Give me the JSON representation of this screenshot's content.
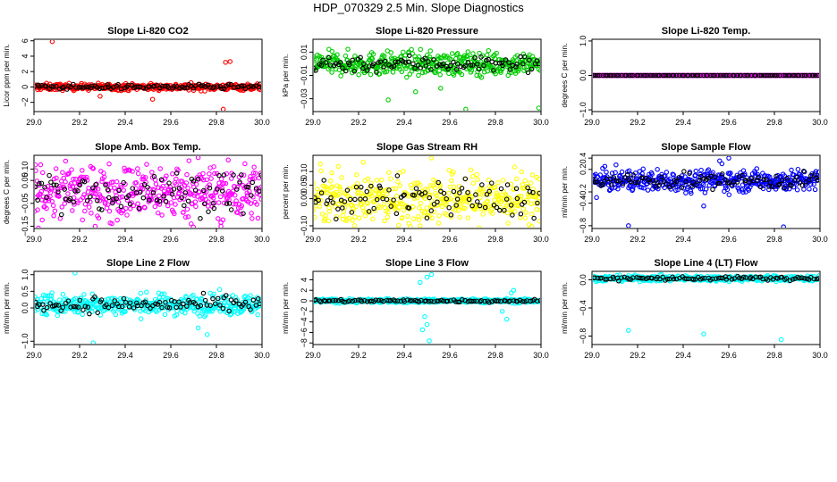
{
  "title": "HDP_070329  2.5 Min. Slope Diagnostics",
  "x_ticks": [
    "29.0",
    "29.2",
    "29.4",
    "29.6",
    "29.8",
    "30.0"
  ],
  "chart_data": [
    {
      "type": "scatter",
      "title": "Slope Li-820 CO2",
      "xlabel": "",
      "ylabel": "Licor ppm per min.",
      "xlim": [
        29.0,
        30.0
      ],
      "ylim": [
        -3.2,
        6.2
      ],
      "yticks": [
        -2,
        0,
        2,
        4,
        6
      ],
      "ytick_labels": [
        "−2",
        "0",
        "2",
        "4",
        "6"
      ],
      "color": "#ff0000",
      "center": 0.0,
      "spread": 0.38,
      "outliers": [
        [
          29.08,
          5.9
        ],
        [
          29.84,
          3.2
        ],
        [
          29.86,
          3.3
        ],
        [
          29.83,
          -2.9
        ],
        [
          29.52,
          -1.6
        ],
        [
          29.29,
          -1.2
        ]
      ]
    },
    {
      "type": "scatter",
      "title": "Slope Li-820 Pressure",
      "xlabel": "",
      "ylabel": "kPa per min.",
      "xlim": [
        29.0,
        30.0
      ],
      "ylim": [
        -0.041,
        0.021
      ],
      "yticks": [
        -0.03,
        -0.01,
        0.01
      ],
      "ytick_labels": [
        "−0.03",
        "−0.01",
        "0.01"
      ],
      "color": "#00cc00",
      "center": 0.0,
      "spread": 0.009,
      "outliers": [
        [
          29.33,
          -0.031
        ],
        [
          29.99,
          -0.038
        ],
        [
          29.67,
          -0.039
        ],
        [
          29.56,
          -0.021
        ],
        [
          29.45,
          -0.024
        ]
      ]
    },
    {
      "type": "scatter",
      "title": "Slope Li-820 Temp.",
      "xlabel": "",
      "ylabel": "degrees C per min.",
      "xlim": [
        29.0,
        30.0
      ],
      "ylim": [
        -1.05,
        1.05
      ],
      "yticks": [
        -1.0,
        0.0,
        1.0
      ],
      "ytick_labels": [
        "−1.0",
        "0.0",
        "1.0"
      ],
      "color": "#ff00ff",
      "center": 0.0,
      "spread": 0.0,
      "outliers": []
    },
    {
      "type": "scatter",
      "title": "Slope Amb. Box Temp.",
      "xlabel": "",
      "ylabel": "degrees C per min.",
      "xlim": [
        29.0,
        30.0
      ],
      "ylim": [
        -0.16,
        0.16
      ],
      "yticks": [
        -0.15,
        -0.05,
        0.05,
        0.1
      ],
      "ytick_labels": [
        "−0.15",
        "−0.05",
        "0.05",
        "0.10"
      ],
      "color": "#ff00ff",
      "center": 0.0,
      "spread": 0.11,
      "outliers": [
        [
          29.72,
          0.15
        ],
        [
          29.82,
          -0.15
        ]
      ]
    },
    {
      "type": "scatter",
      "title": "Slope Gas Stream RH",
      "xlabel": "",
      "ylabel": "percent per min.",
      "xlim": [
        29.0,
        30.0
      ],
      "ylim": [
        -0.11,
        0.16
      ],
      "yticks": [
        -0.1,
        0.0,
        0.05,
        0.1
      ],
      "ytick_labels": [
        "−0.10",
        "0.00",
        "0.05",
        "0.10"
      ],
      "color": "#ffff00",
      "center": 0.0,
      "spread": 0.085,
      "outliers": [
        [
          29.52,
          0.15
        ],
        [
          29.47,
          -0.1
        ]
      ]
    },
    {
      "type": "scatter",
      "title": "Slope Sample Flow",
      "xlabel": "",
      "ylabel": "ml/min per min.",
      "xlim": [
        29.0,
        30.0
      ],
      "ylim": [
        -0.85,
        0.45
      ],
      "yticks": [
        -0.8,
        -0.4,
        -0.2,
        0.2,
        0.4
      ],
      "ytick_labels": [
        "−0.8",
        "−0.4",
        "−0.2",
        "0.2",
        "0.4"
      ],
      "color": "#0000ff",
      "center": 0.0,
      "spread": 0.17,
      "outliers": [
        [
          29.16,
          -0.8
        ],
        [
          29.56,
          0.35
        ],
        [
          29.6,
          0.4
        ],
        [
          29.57,
          0.3
        ],
        [
          29.49,
          -0.45
        ],
        [
          29.84,
          -0.82
        ],
        [
          29.02,
          -0.3
        ]
      ]
    },
    {
      "type": "scatter",
      "title": "Slope Line 2 Flow",
      "xlabel": "",
      "ylabel": "ml/min per min.",
      "xlim": [
        29.0,
        30.0
      ],
      "ylim": [
        -1.1,
        1.1
      ],
      "yticks": [
        -1.0,
        0.0,
        0.5,
        1.0
      ],
      "ytick_labels": [
        "−1.0",
        "0.0",
        "0.5",
        "1.0"
      ],
      "color": "#00ffff",
      "center": 0.1,
      "spread": 0.28,
      "outliers": [
        [
          29.26,
          -1.05
        ],
        [
          29.76,
          -0.8
        ],
        [
          29.72,
          -0.6
        ],
        [
          29.18,
          1.05
        ]
      ]
    },
    {
      "type": "scatter",
      "title": "Slope Line 3 Flow",
      "xlabel": "",
      "ylabel": "ml/min per min.",
      "xlim": [
        29.0,
        30.0
      ],
      "ylim": [
        -8.3,
        5.6
      ],
      "yticks": [
        -8,
        -6,
        -4,
        -2,
        0,
        2,
        4
      ],
      "ytick_labels": [
        "−8",
        "−6",
        "−4",
        "−2",
        "0",
        "2",
        "4"
      ],
      "color": "#00ffff",
      "center": 0.0,
      "spread": 0.35,
      "outliers": [
        [
          29.48,
          -5.5
        ],
        [
          29.5,
          -4.5
        ],
        [
          29.47,
          3.5
        ],
        [
          29.5,
          4.5
        ],
        [
          29.52,
          5.0
        ],
        [
          29.49,
          -3.0
        ],
        [
          29.85,
          -3.5
        ],
        [
          29.88,
          2.0
        ],
        [
          29.87,
          1.5
        ],
        [
          29.83,
          -2.0
        ],
        [
          29.51,
          -7.6
        ]
      ]
    },
    {
      "type": "scatter",
      "title": "Slope Line 4 (LT) Flow",
      "xlabel": "",
      "ylabel": "ml/min per min.",
      "xlim": [
        29.0,
        30.0
      ],
      "ylim": [
        -0.92,
        0.12
      ],
      "yticks": [
        -0.8,
        -0.4,
        0.0
      ],
      "ytick_labels": [
        "−0.8",
        "−0.4",
        "0.0"
      ],
      "color": "#00ffff",
      "center": 0.02,
      "spread": 0.035,
      "outliers": [
        [
          29.16,
          -0.72
        ],
        [
          29.49,
          -0.77
        ],
        [
          29.83,
          -0.85
        ]
      ]
    }
  ]
}
